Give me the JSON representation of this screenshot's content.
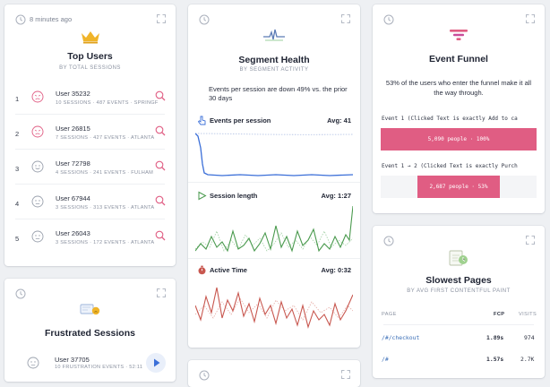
{
  "top_users": {
    "time_ago": "8 minutes ago",
    "title": "Top Users",
    "subtitle": "BY TOTAL SESSIONS",
    "users": [
      {
        "rank": "1",
        "name": "User 35232",
        "meta": "10 SESSIONS · 487 EVENTS · SPRINGFIELD",
        "mood": "frustrated"
      },
      {
        "rank": "2",
        "name": "User 26815",
        "meta": "7 SESSIONS · 427 EVENTS · ATLANTA",
        "mood": "frustrated"
      },
      {
        "rank": "3",
        "name": "User 72798",
        "meta": "4 SESSIONS · 241 EVENTS · FULHAM",
        "mood": "happy"
      },
      {
        "rank": "4",
        "name": "User 67944",
        "meta": "3 SESSIONS · 313 EVENTS · ATLANTA",
        "mood": "neutral"
      },
      {
        "rank": "5",
        "name": "User 26043",
        "meta": "3 SESSIONS · 172 EVENTS · ATLANTA",
        "mood": "neutral"
      }
    ]
  },
  "segment_health": {
    "title": "Segment Health",
    "subtitle": "BY SEGMENT ACTIVITY",
    "summary": "Events per session are down 49% vs. the prior 30 days",
    "metrics": [
      {
        "name": "Events per session",
        "avg": "Avg: 41",
        "icon": "pointer-icon",
        "color": "#3b6fd8"
      },
      {
        "name": "Session length",
        "avg": "Avg: 1:27",
        "icon": "play-triangle-icon",
        "color": "#4a9a4e"
      },
      {
        "name": "Active Time",
        "avg": "Avg: 0:32",
        "icon": "stopwatch-icon",
        "color": "#c8574f"
      }
    ]
  },
  "event_funnel": {
    "title": "Event Funnel",
    "summary": "53% of the users who enter the funnel make it all the way through.",
    "steps": [
      {
        "label": "Event 1 (Clicked Text is exactly Add to ca",
        "bar_text": "5,090 people · 100%",
        "fraction": 1.0
      },
      {
        "label": "Event 1 → 2 (Clicked Text is exactly Purch",
        "bar_text": "2,687 people · 53%",
        "fraction": 0.53
      }
    ]
  },
  "slowest_pages": {
    "title": "Slowest Pages",
    "subtitle": "BY AVG FIRST CONTENTFUL PAINT",
    "columns": {
      "page": "PAGE",
      "fcp": "FCP",
      "visits": "VISITS"
    },
    "rows": [
      {
        "page": "/#/checkout",
        "fcp": "1.89s",
        "visits": "974"
      },
      {
        "page": "/#",
        "fcp": "1.57s",
        "visits": "2.7K"
      }
    ]
  },
  "frustrated_sessions": {
    "title": "Frustrated Sessions",
    "rows": [
      {
        "name": "User 37705",
        "meta": "10 FRUSTRATION EVENTS · 52:11"
      }
    ]
  },
  "colors": {
    "accent_pink": "#e05d83",
    "crown": "#f0b429",
    "link": "#3b6fb8"
  }
}
